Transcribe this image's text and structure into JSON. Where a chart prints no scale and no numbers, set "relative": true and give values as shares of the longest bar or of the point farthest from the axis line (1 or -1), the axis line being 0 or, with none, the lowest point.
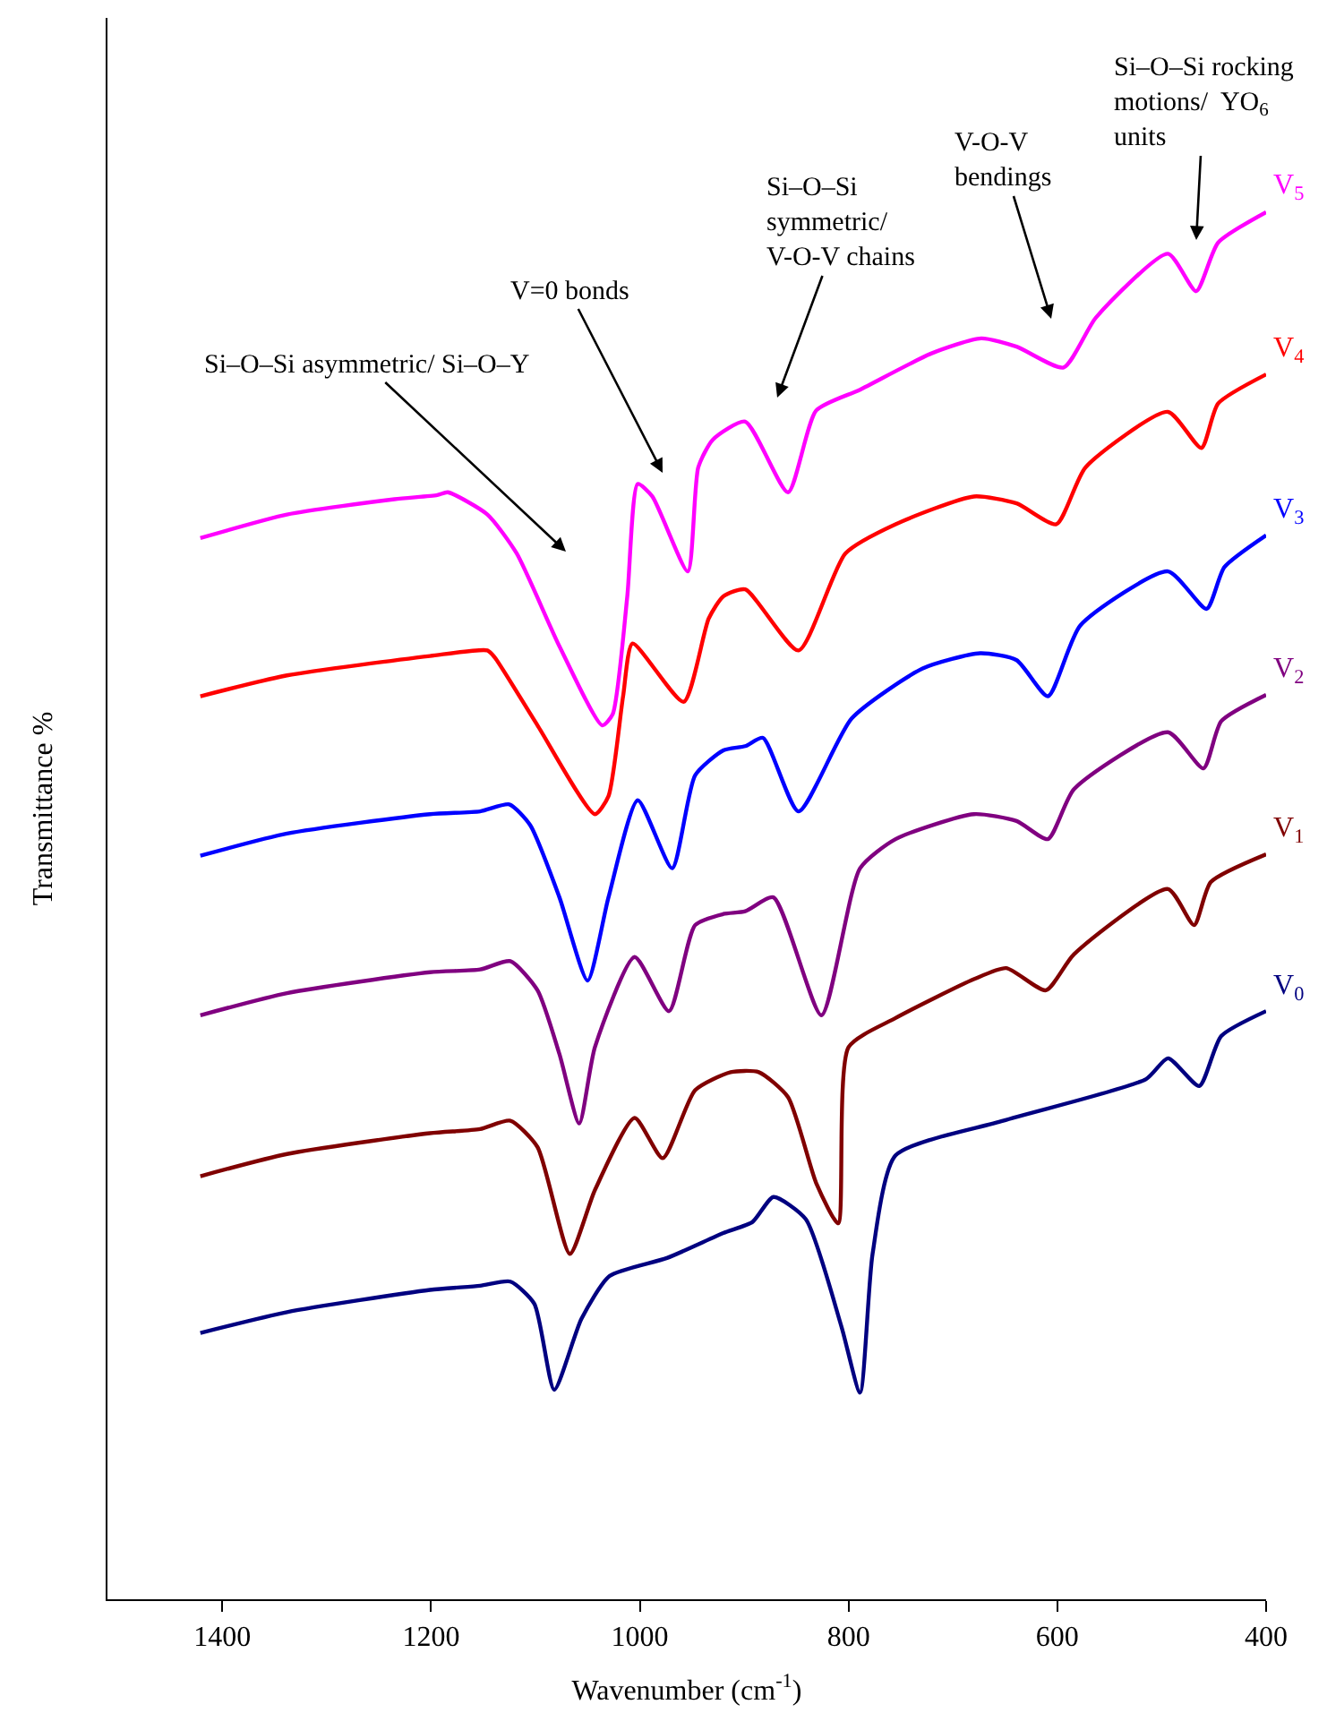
{
  "chart_data": {
    "type": "line",
    "relative": true,
    "xlabel": "Wavenumber (cm$^{-1}$)",
    "ylabel": "Transmittance %",
    "xlim": [
      1510,
      400
    ],
    "xticks": [
      1400,
      1200,
      1000,
      800,
      600,
      400
    ],
    "marker": "none",
    "line_style": "solid",
    "annotations": [
      "Si–O–Si asymmetric/ Si–O–Y",
      "V=0 bonds",
      "Si–O–Si\nsymmetric/\nV-O-V chains",
      "V-O-V\nbendings",
      "Si–O–Si rocking\nmotions/  YO$_{6}$\nunits"
    ],
    "series": [
      {
        "name": "V$_{5}$",
        "color": "#ff00ff",
        "x": [
          1421,
          1338,
          1235,
          1194,
          1184,
          1146,
          1118,
          1077,
          1036,
          1026,
          1012,
          1002,
          988,
          954,
          944,
          930,
          899,
          858,
          831,
          789,
          721,
          673,
          639,
          594,
          563,
          494,
          467,
          446,
          400
        ],
        "values": [
          0.765,
          0.782,
          0.793,
          0.796,
          0.798,
          0.782,
          0.754,
          0.687,
          0.63,
          0.638,
          0.723,
          0.804,
          0.795,
          0.741,
          0.816,
          0.836,
          0.849,
          0.798,
          0.857,
          0.872,
          0.898,
          0.909,
          0.903,
          0.888,
          0.924,
          0.97,
          0.943,
          0.978,
          1.0
        ]
      },
      {
        "name": "V$_{4}$",
        "color": "#ff0000",
        "x": [
          1421,
          1338,
          1201,
          1146,
          1139,
          1098,
          1043,
          1030,
          1016,
          1007,
          958,
          934,
          920,
          899,
          848,
          803,
          755,
          680,
          639,
          601,
          573,
          494,
          462,
          446,
          400
        ],
        "values": [
          0.651,
          0.666,
          0.68,
          0.684,
          0.679,
          0.63,
          0.566,
          0.579,
          0.651,
          0.689,
          0.647,
          0.707,
          0.723,
          0.728,
          0.684,
          0.754,
          0.775,
          0.795,
          0.79,
          0.775,
          0.816,
          0.856,
          0.83,
          0.862,
          0.883
        ]
      },
      {
        "name": "V$_{3}$",
        "color": "#0000ff",
        "x": [
          1421,
          1338,
          1201,
          1153,
          1125,
          1105,
          1077,
          1050,
          1030,
          1002,
          969,
          947,
          920,
          899,
          882,
          848,
          797,
          729,
          674,
          639,
          609,
          578,
          494,
          457,
          440,
          400
        ],
        "values": [
          0.536,
          0.552,
          0.566,
          0.568,
          0.573,
          0.558,
          0.506,
          0.446,
          0.506,
          0.576,
          0.527,
          0.594,
          0.612,
          0.615,
          0.621,
          0.568,
          0.635,
          0.671,
          0.682,
          0.677,
          0.651,
          0.702,
          0.741,
          0.714,
          0.744,
          0.767
        ]
      },
      {
        "name": "V$_{2}$",
        "color": "#800080",
        "x": [
          1421,
          1338,
          1201,
          1153,
          1124,
          1098,
          1077,
          1058,
          1043,
          1005,
          972,
          947,
          920,
          899,
          872,
          826,
          789,
          755,
          680,
          639,
          609,
          584,
          494,
          460,
          443,
          400
        ],
        "values": [
          0.421,
          0.437,
          0.452,
          0.454,
          0.46,
          0.439,
          0.393,
          0.343,
          0.398,
          0.463,
          0.424,
          0.486,
          0.494,
          0.496,
          0.506,
          0.421,
          0.527,
          0.548,
          0.566,
          0.561,
          0.548,
          0.584,
          0.625,
          0.599,
          0.633,
          0.652
        ]
      },
      {
        "name": "V$_{1}$",
        "color": "#800000",
        "x": [
          1421,
          1338,
          1201,
          1153,
          1124,
          1098,
          1067,
          1043,
          1005,
          978,
          947,
          913,
          886,
          858,
          831,
          810,
          800,
          755,
          680,
          649,
          611,
          584,
          494,
          469,
          453,
          400
        ],
        "values": [
          0.305,
          0.321,
          0.336,
          0.339,
          0.345,
          0.326,
          0.249,
          0.295,
          0.347,
          0.318,
          0.367,
          0.38,
          0.38,
          0.362,
          0.3,
          0.271,
          0.398,
          0.419,
          0.447,
          0.455,
          0.439,
          0.465,
          0.512,
          0.486,
          0.517,
          0.537
        ]
      },
      {
        "name": "V$_{0}$",
        "color": "#000080",
        "x": [
          1421,
          1338,
          1201,
          1153,
          1124,
          1101,
          1082,
          1056,
          1029,
          974,
          920,
          892,
          872,
          841,
          807,
          789,
          777,
          755,
          652,
          515,
          494,
          464,
          443,
          400
        ],
        "values": [
          0.192,
          0.207,
          0.223,
          0.226,
          0.229,
          0.213,
          0.151,
          0.202,
          0.233,
          0.246,
          0.264,
          0.272,
          0.29,
          0.274,
          0.197,
          0.149,
          0.249,
          0.32,
          0.345,
          0.375,
          0.39,
          0.37,
          0.406,
          0.424
        ]
      }
    ]
  }
}
